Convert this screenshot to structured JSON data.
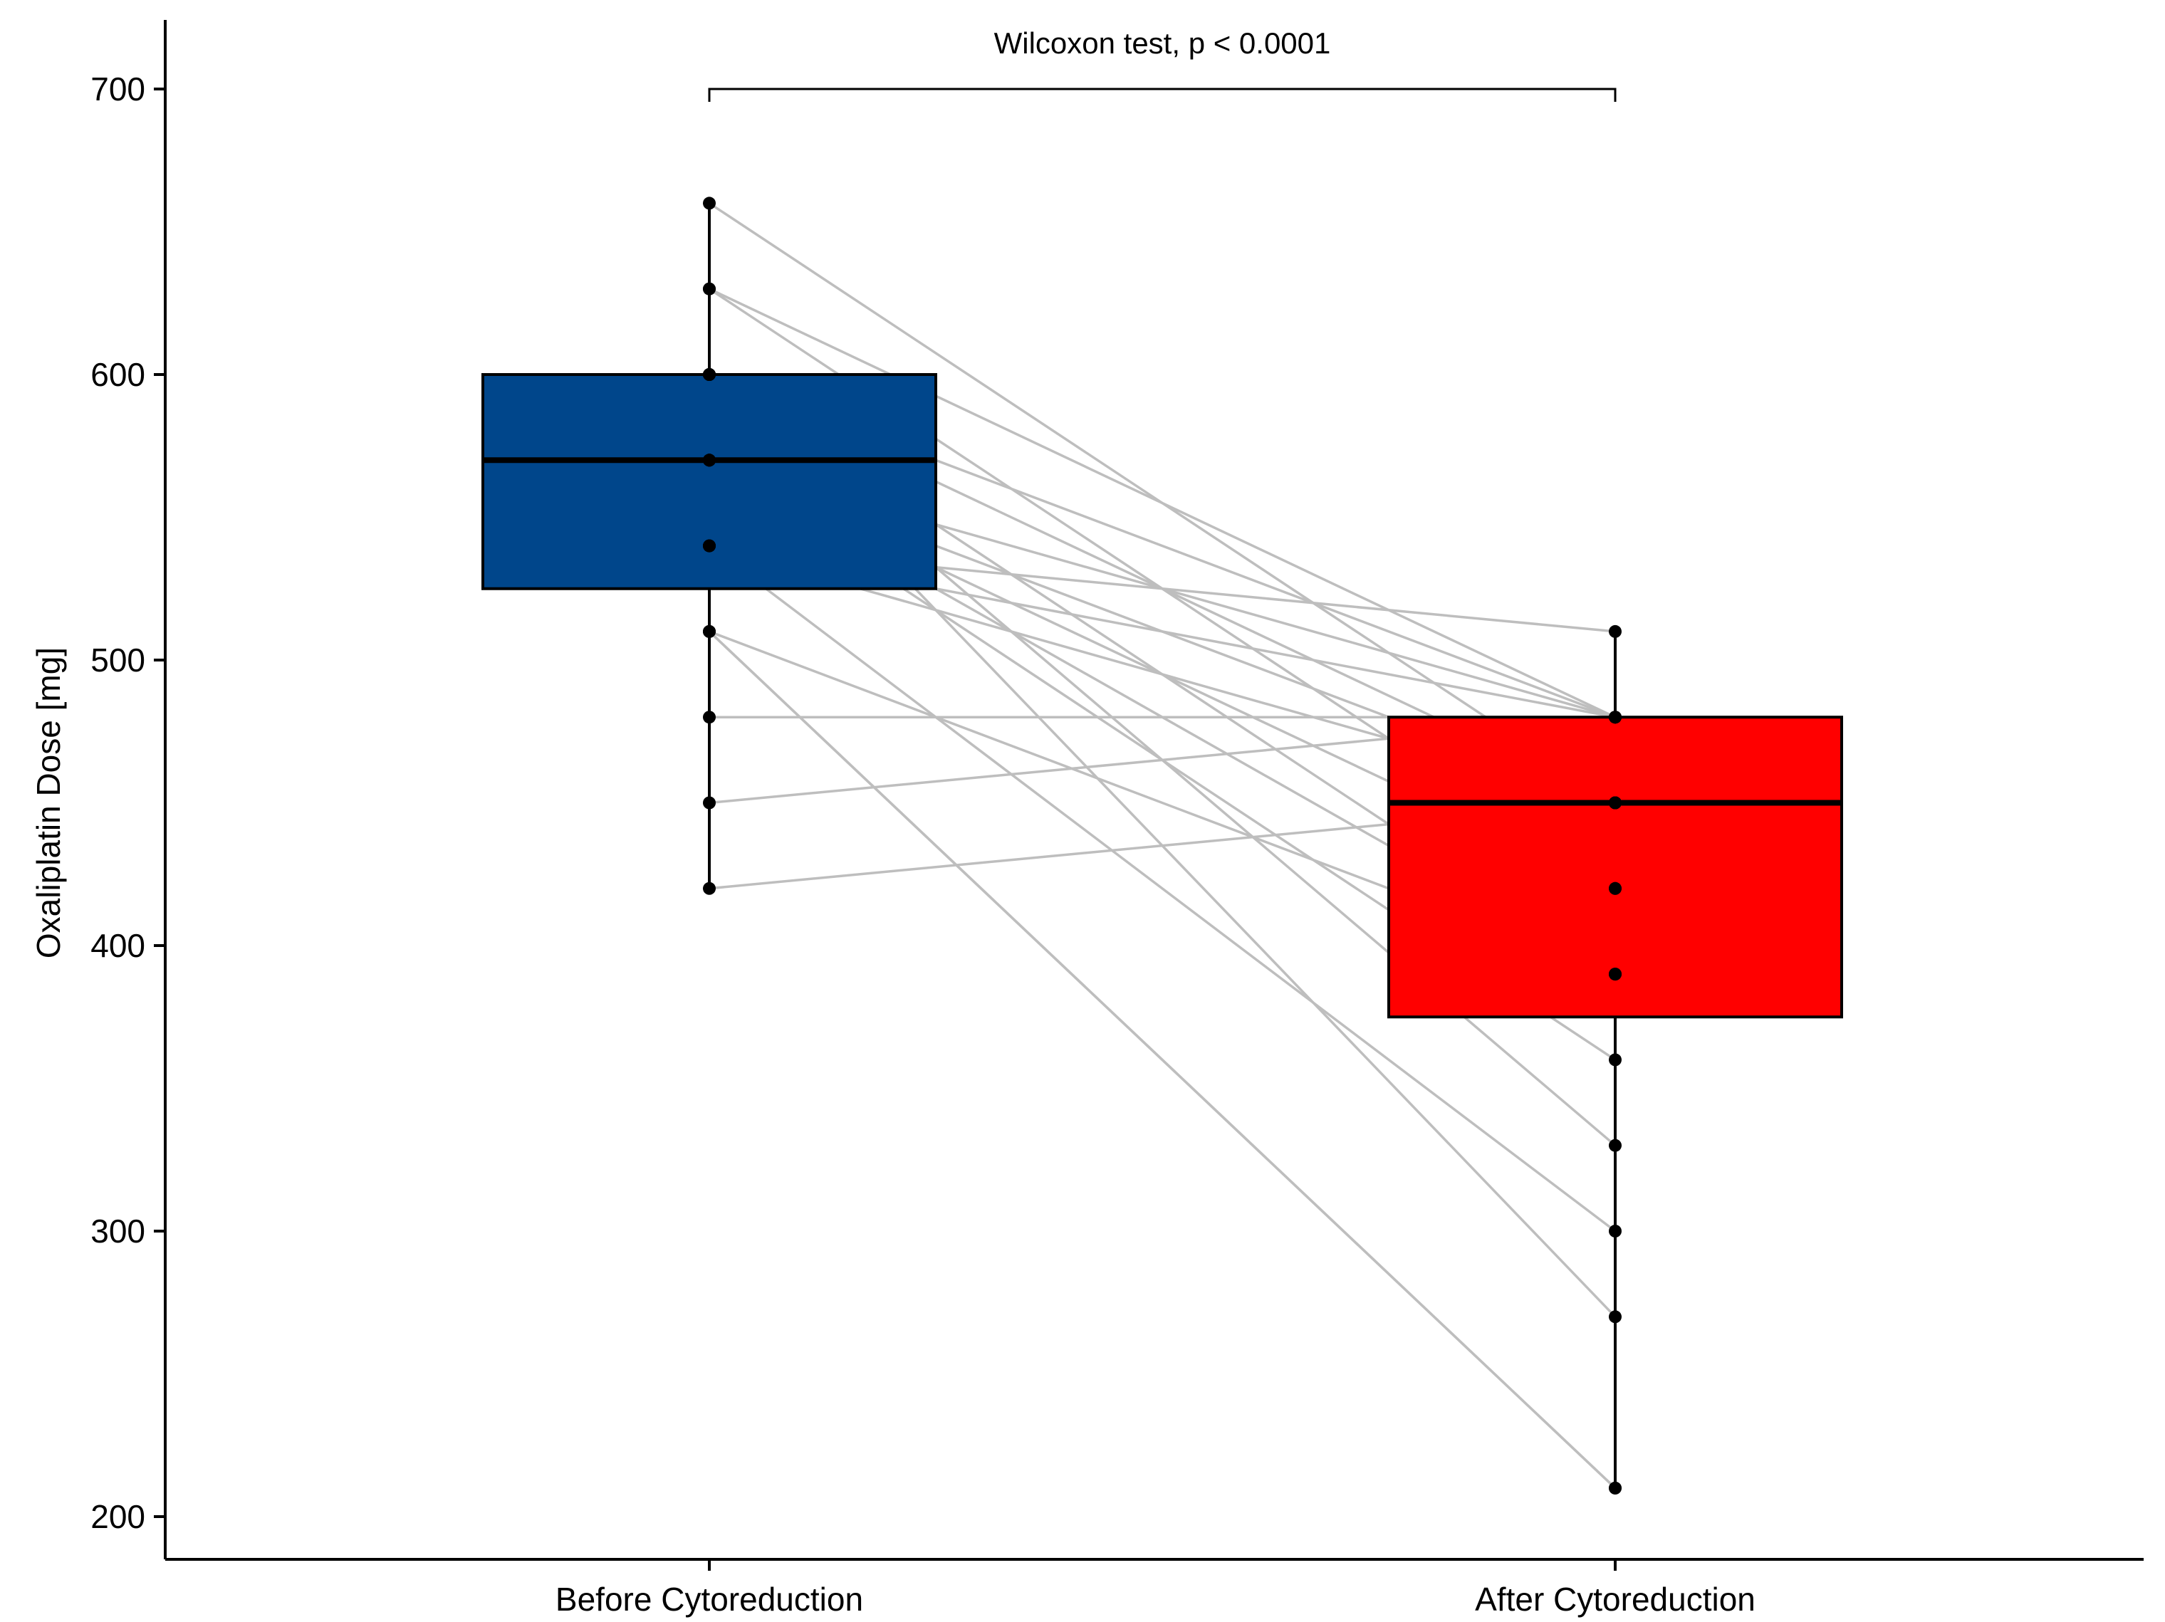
{
  "chart_data": {
    "type": "box",
    "title": "",
    "xlabel": "",
    "ylabel": "Oxaliplatin Dose [mg]",
    "categories": [
      "Before Cytoreduction",
      "After Cytoreduction"
    ],
    "ylim": [
      200,
      700
    ],
    "yticks": [
      200,
      300,
      400,
      500,
      600,
      700
    ],
    "grid": false,
    "legend": "none",
    "boxes": [
      {
        "name": "Before Cytoreduction",
        "color": "#00468B",
        "q1": 525,
        "median": 570,
        "q3": 600,
        "whisker_low": 420,
        "whisker_high": 660
      },
      {
        "name": "After Cytoreduction",
        "color": "#FF0000",
        "q1": 375,
        "median": 450,
        "q3": 480,
        "whisker_low": 210,
        "whisker_high": 510
      }
    ],
    "paired_lines_color": "#BEBEBE",
    "pairs": [
      [
        660,
        450
      ],
      [
        630,
        480
      ],
      [
        630,
        420
      ],
      [
        600,
        480
      ],
      [
        600,
        450
      ],
      [
        600,
        390
      ],
      [
        600,
        330
      ],
      [
        600,
        270
      ],
      [
        570,
        480
      ],
      [
        570,
        450
      ],
      [
        570,
        420
      ],
      [
        570,
        390
      ],
      [
        570,
        360
      ],
      [
        540,
        510
      ],
      [
        540,
        480
      ],
      [
        540,
        450
      ],
      [
        540,
        300
      ],
      [
        510,
        390
      ],
      [
        510,
        210
      ],
      [
        510,
        210
      ],
      [
        480,
        480
      ],
      [
        450,
        480
      ],
      [
        420,
        450
      ]
    ],
    "annotation": {
      "text": "Wilcoxon test, p < 0.0001",
      "bracket_y": 700,
      "between": [
        "Before Cytoreduction",
        "After Cytoreduction"
      ]
    }
  }
}
